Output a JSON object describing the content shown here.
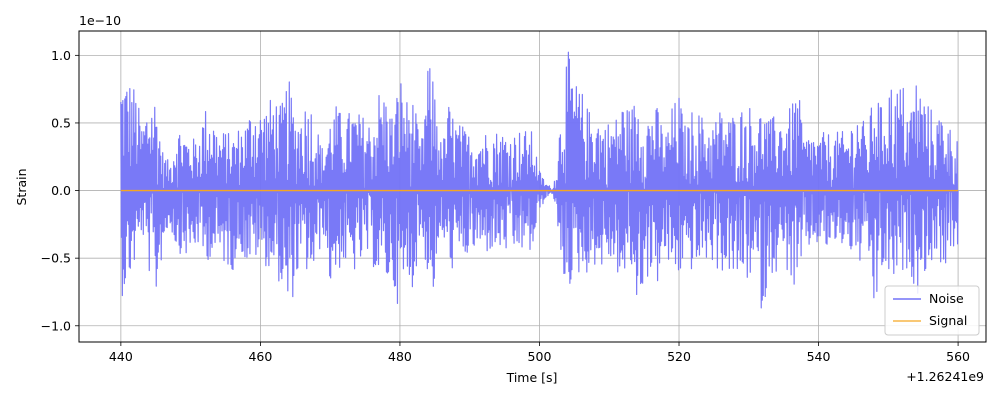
{
  "chart_data": {
    "type": "line",
    "title": "",
    "xlabel": "Time [s]",
    "ylabel": "Strain",
    "x_offset_label": "+1.26241e9",
    "y_scale_label": "1e−10",
    "xlim": [
      434,
      564
    ],
    "ylim": [
      -1.12,
      1.18
    ],
    "x_ticks": [
      440,
      460,
      480,
      500,
      520,
      540,
      560
    ],
    "x_tick_labels": [
      "440",
      "460",
      "480",
      "500",
      "520",
      "540",
      "560"
    ],
    "y_ticks": [
      -1.0,
      -0.5,
      0.0,
      0.5,
      1.0
    ],
    "y_tick_labels": [
      "−1.0",
      "−0.5",
      "0.0",
      "0.5",
      "1.0"
    ],
    "grid": true,
    "legend_position": "lower-right",
    "series": [
      {
        "name": "Noise",
        "color": "#7272f7",
        "x": [
          440,
          441,
          442,
          443,
          444,
          445,
          446,
          447,
          448,
          449,
          450,
          451,
          452,
          453,
          454,
          455,
          456,
          457,
          458,
          459,
          460,
          461,
          462,
          463,
          464,
          465,
          466,
          467,
          468,
          469,
          470,
          471,
          472,
          473,
          474,
          475,
          476,
          477,
          478,
          479,
          480,
          481,
          482,
          483,
          484,
          485,
          486,
          487,
          488,
          489,
          490,
          491,
          492,
          493,
          494,
          495,
          496,
          497,
          498,
          499,
          500,
          501,
          502,
          503,
          504,
          505,
          506,
          507,
          508,
          509,
          510,
          511,
          512,
          513,
          514,
          515,
          516,
          517,
          518,
          519,
          520,
          521,
          522,
          523,
          524,
          525,
          526,
          527,
          528,
          529,
          530,
          531,
          532,
          533,
          534,
          535,
          536,
          537,
          538,
          539,
          540,
          541,
          542,
          543,
          544,
          545,
          546,
          547,
          548,
          549,
          550,
          551,
          552,
          553,
          554,
          555,
          556,
          557,
          558,
          559,
          560
        ],
        "y_max": [
          0.88,
          0.85,
          0.78,
          0.5,
          0.7,
          0.72,
          0.3,
          0.2,
          0.5,
          0.45,
          0.38,
          0.4,
          0.62,
          0.6,
          0.42,
          0.45,
          0.4,
          0.48,
          0.52,
          0.68,
          0.6,
          0.65,
          0.72,
          0.62,
          0.85,
          0.55,
          0.62,
          0.7,
          0.5,
          0.3,
          0.55,
          0.65,
          0.5,
          0.62,
          0.58,
          0.55,
          0.5,
          0.75,
          0.72,
          0.55,
          0.88,
          0.68,
          0.68,
          0.3,
          0.95,
          0.82,
          0.3,
          0.65,
          0.52,
          0.48,
          0.42,
          0.44,
          0.44,
          0.45,
          0.45,
          0.44,
          0.42,
          0.45,
          0.45,
          0.44,
          0.15,
          0.05,
          0.02,
          0.55,
          1.06,
          0.82,
          0.75,
          0.6,
          0.62,
          0.5,
          0.52,
          0.55,
          0.68,
          0.6,
          0.72,
          0.55,
          0.62,
          0.62,
          0.4,
          0.62,
          0.72,
          0.45,
          0.62,
          0.58,
          0.5,
          0.52,
          0.62,
          0.55,
          0.58,
          0.62,
          0.65,
          0.55,
          0.62,
          0.52,
          0.58,
          0.55,
          0.62,
          0.78,
          0.38,
          0.45,
          0.38,
          0.45,
          0.4,
          0.45,
          0.42,
          0.55,
          0.62,
          0.38,
          0.82,
          0.62,
          0.85,
          0.75,
          0.82,
          0.58,
          0.85,
          0.72,
          0.62,
          0.55,
          0.62,
          0.45,
          0.45
        ],
        "y_min": [
          -0.8,
          -0.7,
          -0.55,
          -0.3,
          -0.6,
          -0.82,
          -0.45,
          -0.25,
          -0.45,
          -0.48,
          -0.5,
          -0.4,
          -0.55,
          -0.48,
          -0.52,
          -0.55,
          -0.6,
          -0.42,
          -0.55,
          -0.52,
          -0.48,
          -0.58,
          -0.6,
          -0.72,
          -1.0,
          -0.68,
          -0.55,
          -0.65,
          -0.6,
          -0.3,
          -0.72,
          -0.6,
          -0.55,
          -0.62,
          -0.6,
          -0.48,
          -0.55,
          -0.65,
          -0.68,
          -0.72,
          -0.9,
          -0.7,
          -0.72,
          -0.3,
          -0.65,
          -0.78,
          -0.3,
          -0.62,
          -0.55,
          -0.52,
          -0.48,
          -0.44,
          -0.48,
          -0.45,
          -0.45,
          -0.45,
          -0.5,
          -0.45,
          -0.45,
          -0.48,
          -0.15,
          -0.05,
          -0.02,
          -0.62,
          -0.72,
          -0.68,
          -0.6,
          -0.62,
          -0.55,
          -0.58,
          -0.52,
          -0.6,
          -0.72,
          -0.55,
          -0.88,
          -0.68,
          -0.62,
          -0.7,
          -0.5,
          -0.62,
          -0.65,
          -0.5,
          -0.62,
          -0.55,
          -0.52,
          -0.55,
          -0.62,
          -0.58,
          -0.72,
          -0.62,
          -0.68,
          -0.62,
          -0.95,
          -0.6,
          -0.62,
          -0.5,
          -0.7,
          -0.8,
          -0.45,
          -0.42,
          -0.4,
          -0.45,
          -0.4,
          -0.42,
          -0.4,
          -0.5,
          -0.55,
          -0.42,
          -0.95,
          -0.6,
          -0.65,
          -0.68,
          -0.65,
          -0.55,
          -0.8,
          -0.62,
          -0.55,
          -0.5,
          -0.58,
          -0.45,
          -0.45
        ]
      },
      {
        "name": "Signal",
        "color": "#f5a623",
        "x": [
          440,
          560
        ],
        "y": [
          0.0,
          0.0
        ]
      }
    ]
  }
}
